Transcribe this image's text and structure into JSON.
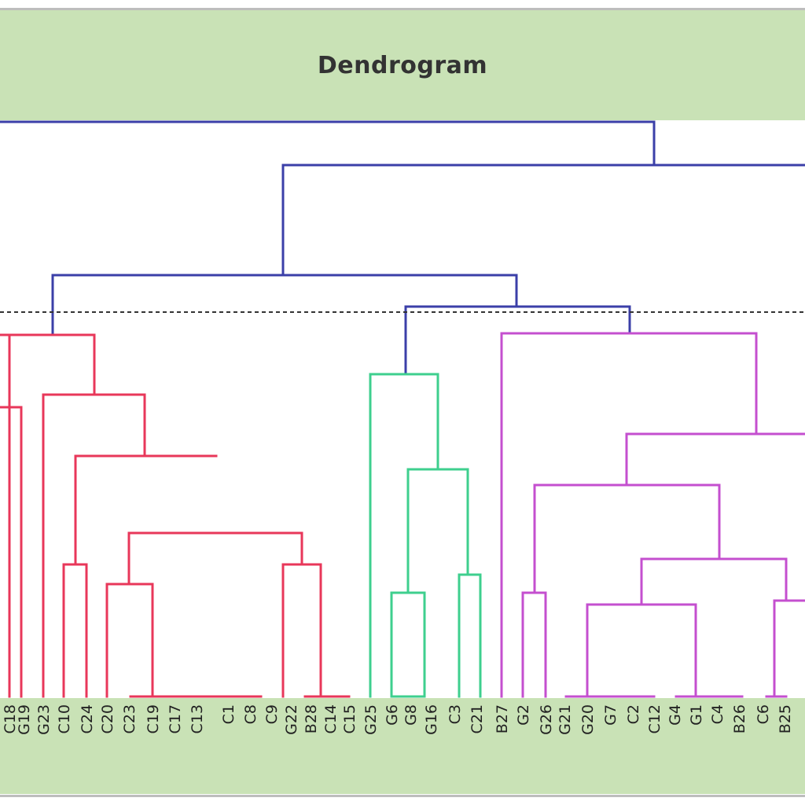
{
  "title": "Dendrogram",
  "chart_data": {
    "type": "dendrogram",
    "title": "Dendrogram",
    "cut_line": "dashed",
    "colors": {
      "upper": "#3b3fa8",
      "cluster1": "#e8375a",
      "cluster2": "#3ecf8e",
      "cluster3": "#c44fcf",
      "cut": "#333333"
    },
    "leaves": [
      "C18",
      "G19",
      "G23",
      "C10",
      "C24",
      "C20",
      "C23",
      "C19",
      "C17",
      "C13",
      "C1",
      "C8",
      "C9",
      "G22",
      "B28",
      "C14",
      "C15",
      "G25",
      "G6",
      "G8",
      "G16",
      "C3",
      "C21",
      "B27",
      "G2",
      "G26",
      "G21",
      "G20",
      "G7",
      "C2",
      "C12",
      "G4",
      "G1",
      "C4",
      "B26",
      "C6",
      "B25"
    ],
    "clusters": [
      {
        "leaves": [
          "C18",
          "G19",
          "G23",
          "C10",
          "C24",
          "C20",
          "C23",
          "C19",
          "C17",
          "C13",
          "C1",
          "C8",
          "C9",
          "G22",
          "B28",
          "C14",
          "C15"
        ],
        "color": "cluster1"
      },
      {
        "leaves": [
          "G25",
          "G6",
          "G8",
          "G16",
          "C3",
          "C21"
        ],
        "color": "cluster2"
      },
      {
        "leaves": [
          "B27",
          "G2",
          "G26",
          "G21",
          "G20",
          "G7",
          "C2",
          "C12",
          "G4",
          "G1",
          "C4",
          "B26",
          "C6",
          "B25"
        ],
        "color": "cluster3"
      }
    ]
  }
}
